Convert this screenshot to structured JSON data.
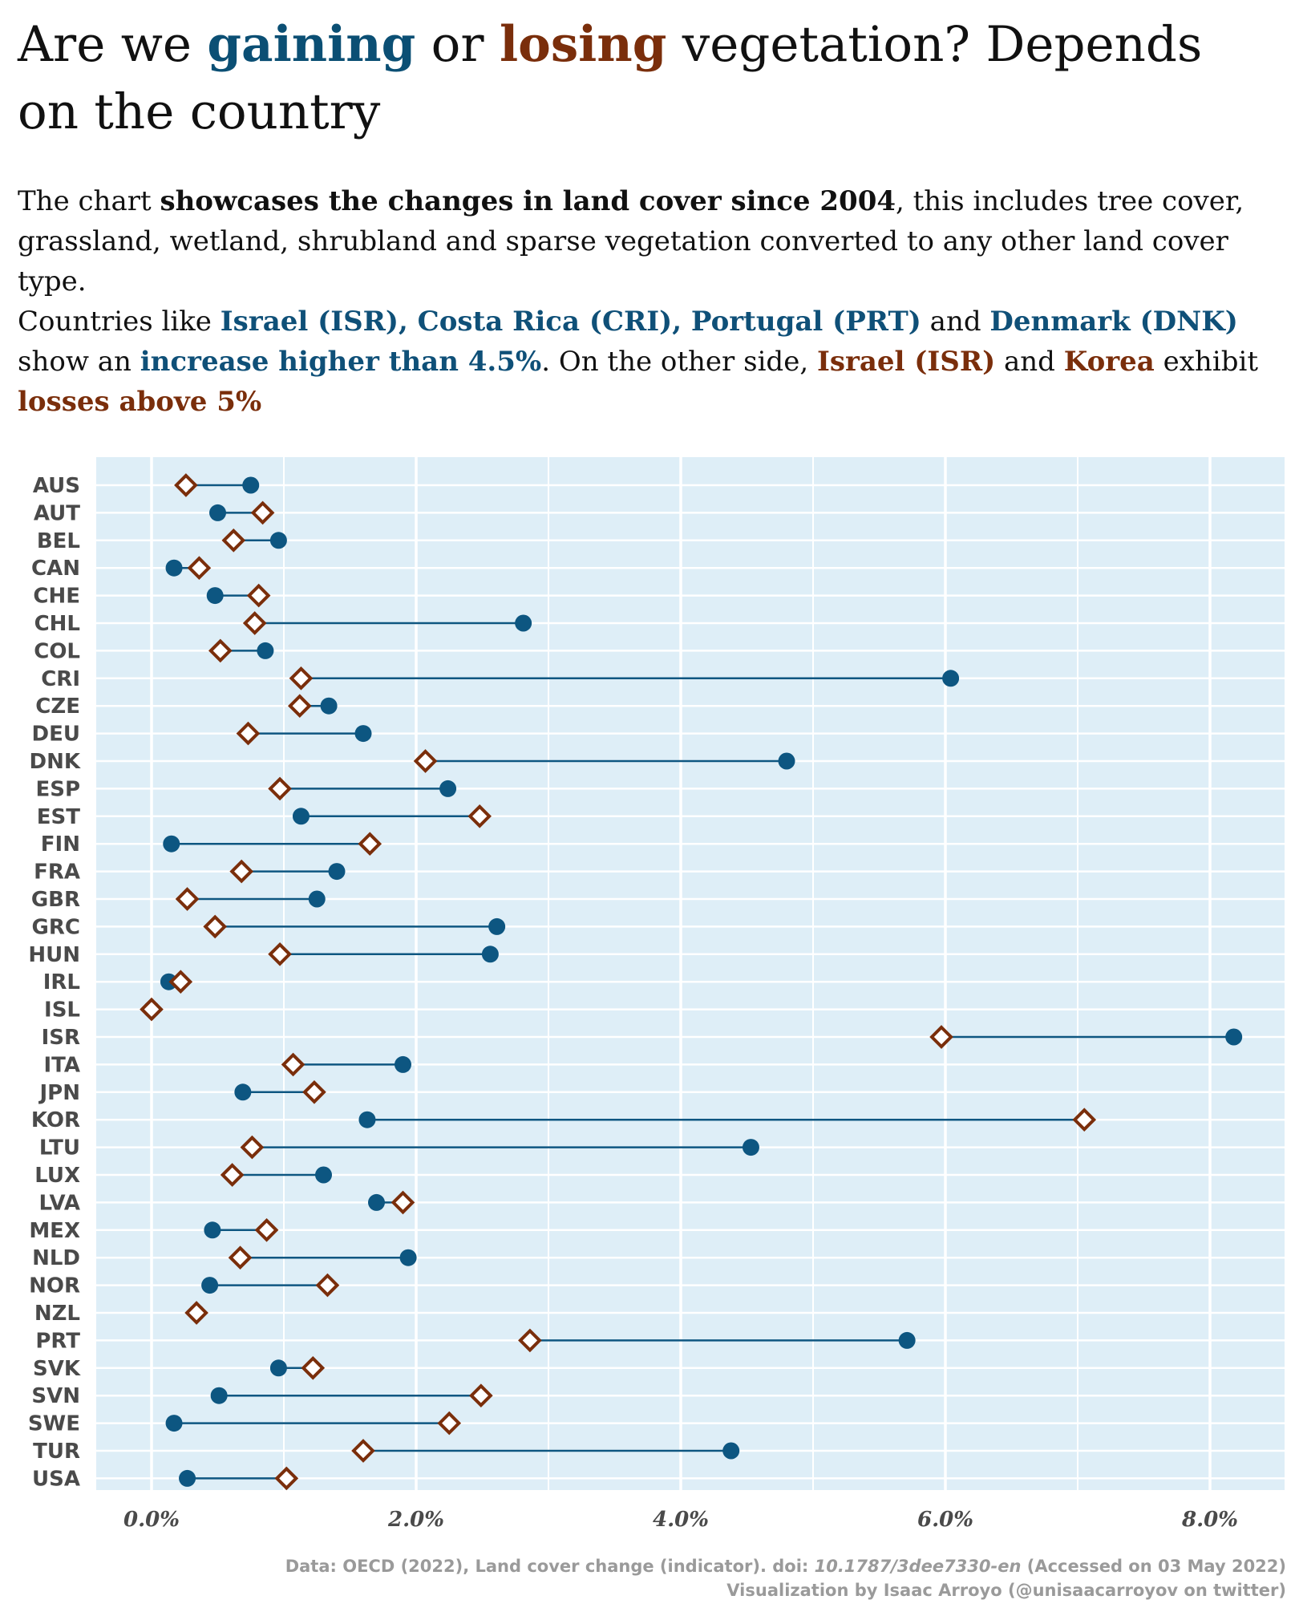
{
  "title": {
    "p1": "Are we ",
    "gaining": "gaining",
    "p2": " or ",
    "losing": "losing",
    "p3": " vegetation? Depends on the country"
  },
  "subtitle": {
    "l1_a": "The chart ",
    "l1_b": "showcases the changes in land cover since 2004",
    "l1_c": ", this includes tree cover, grassland, wetland, shrubland and sparse vegetation converted to any other land cover type.",
    "l2_a": "Countries like ",
    "l2_b": "Israel (ISR), Costa Rica (CRI), Portugal (PRT)",
    "l2_c": " and ",
    "l2_d": "Denmark (DNK)",
    "l2_e": " show an  ",
    "l2_f": "increase higher than 4.5%",
    "l2_g": ". On the other side, ",
    "l2_h": "Israel (ISR)",
    "l2_i": " and ",
    "l2_j": "Korea",
    "l2_k": " exhibit ",
    "l2_l": "losses above 5%"
  },
  "colors": {
    "panel": "#deeef7",
    "grid": "#ffffff",
    "gain": "#0d5681",
    "loss": "#7a2e0b",
    "label": "#4a4a4a"
  },
  "chart_data": {
    "type": "dumbbell",
    "xlim": [
      -0.4,
      8.3
    ],
    "xticks": [
      0,
      2,
      4,
      6,
      8
    ],
    "xtick_labels": [
      "0.0%",
      "2.0%",
      "4.0%",
      "6.0%",
      "8.0%"
    ],
    "grid": true,
    "series": [
      {
        "marker": "circle",
        "color": "#0d5681"
      },
      {
        "marker": "diamond",
        "color": "#7a2e0b"
      }
    ],
    "countries": [
      {
        "code": "AUS",
        "gain": 0.75,
        "loss": 0.26
      },
      {
        "code": "AUT",
        "gain": 0.5,
        "loss": 0.84
      },
      {
        "code": "BEL",
        "gain": 0.96,
        "loss": 0.62
      },
      {
        "code": "CAN",
        "gain": 0.17,
        "loss": 0.36
      },
      {
        "code": "CHE",
        "gain": 0.48,
        "loss": 0.81
      },
      {
        "code": "CHL",
        "gain": 2.81,
        "loss": 0.78
      },
      {
        "code": "COL",
        "gain": 0.86,
        "loss": 0.52
      },
      {
        "code": "CRI",
        "gain": 6.04,
        "loss": 1.13
      },
      {
        "code": "CZE",
        "gain": 1.34,
        "loss": 1.12
      },
      {
        "code": "DEU",
        "gain": 1.6,
        "loss": 0.73
      },
      {
        "code": "DNK",
        "gain": 4.8,
        "loss": 2.07
      },
      {
        "code": "ESP",
        "gain": 2.24,
        "loss": 0.97
      },
      {
        "code": "EST",
        "gain": 1.13,
        "loss": 2.48
      },
      {
        "code": "FIN",
        "gain": 0.15,
        "loss": 1.65
      },
      {
        "code": "FRA",
        "gain": 1.4,
        "loss": 0.68
      },
      {
        "code": "GBR",
        "gain": 1.25,
        "loss": 0.27
      },
      {
        "code": "GRC",
        "gain": 2.61,
        "loss": 0.48
      },
      {
        "code": "HUN",
        "gain": 2.56,
        "loss": 0.97
      },
      {
        "code": "IRL",
        "gain": 0.13,
        "loss": 0.22
      },
      {
        "code": "ISL",
        "gain": 0.0,
        "loss": 0.0
      },
      {
        "code": "ISR",
        "gain": 8.18,
        "loss": 5.97
      },
      {
        "code": "ITA",
        "gain": 1.9,
        "loss": 1.07
      },
      {
        "code": "JPN",
        "gain": 0.69,
        "loss": 1.23
      },
      {
        "code": "KOR",
        "gain": 1.63,
        "loss": 7.05
      },
      {
        "code": "LTU",
        "gain": 4.53,
        "loss": 0.76
      },
      {
        "code": "LUX",
        "gain": 1.3,
        "loss": 0.61
      },
      {
        "code": "LVA",
        "gain": 1.7,
        "loss": 1.9
      },
      {
        "code": "MEX",
        "gain": 0.46,
        "loss": 0.87
      },
      {
        "code": "NLD",
        "gain": 1.94,
        "loss": 0.67
      },
      {
        "code": "NOR",
        "gain": 0.44,
        "loss": 1.33
      },
      {
        "code": "NZL",
        "gain": 0.34,
        "loss": 0.34
      },
      {
        "code": "PRT",
        "gain": 5.71,
        "loss": 2.86
      },
      {
        "code": "SVK",
        "gain": 0.96,
        "loss": 1.22
      },
      {
        "code": "SVN",
        "gain": 0.51,
        "loss": 2.49
      },
      {
        "code": "SWE",
        "gain": 0.17,
        "loss": 2.25
      },
      {
        "code": "TUR",
        "gain": 4.38,
        "loss": 1.6
      },
      {
        "code": "USA",
        "gain": 0.27,
        "loss": 1.02
      }
    ]
  },
  "caption": {
    "line1_a": "Data: OECD (2022), Land cover change (indicator). doi: ",
    "line1_doi": "10.1787/3dee7330-en",
    "line1_b": " (Accessed on 03 May 2022)",
    "line2": "Visualization by Isaac Arroyo (@unisaacarroyov on twitter)"
  }
}
